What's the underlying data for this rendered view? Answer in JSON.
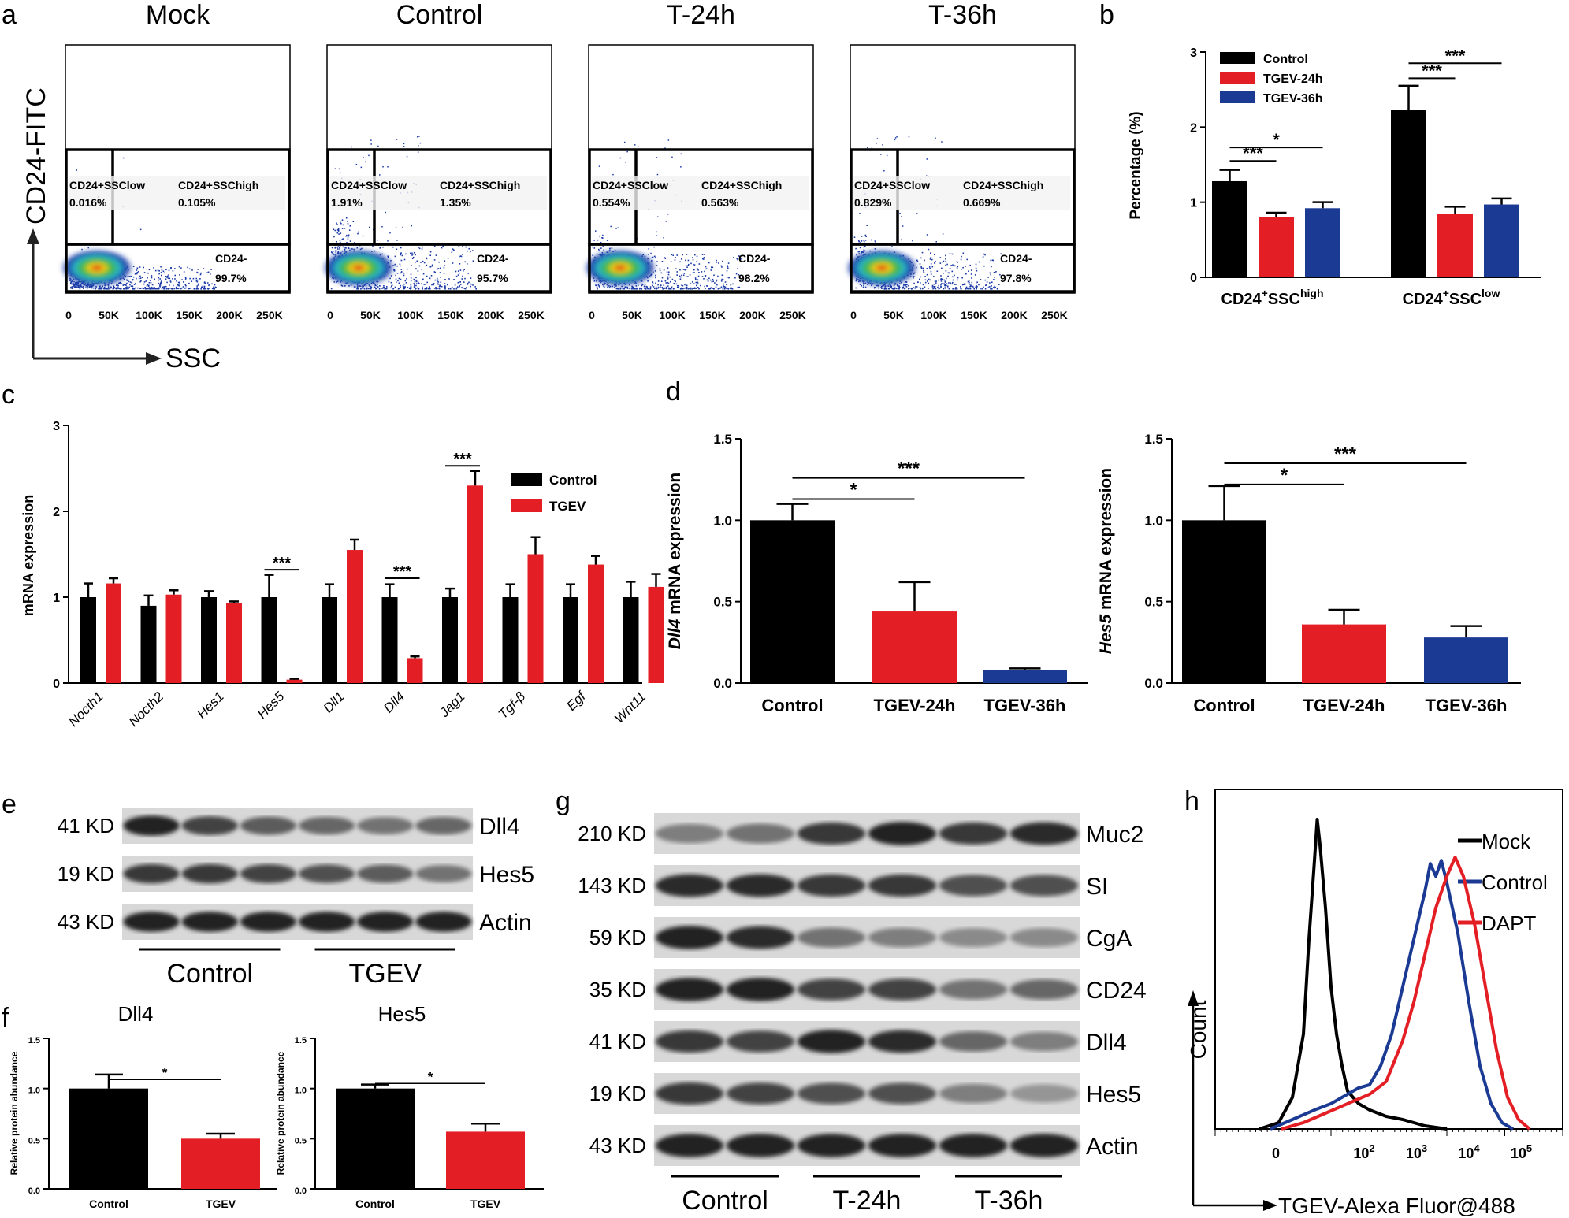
{
  "colors": {
    "black": "#000000",
    "red": "#e31e24",
    "blue": "#1b3a94"
  },
  "panel_a": {
    "letter": "a",
    "y_axis_label": "CD24-FITC",
    "x_axis_label": "SSC",
    "x_ticks": [
      "0",
      "50K",
      "100K",
      "150K",
      "200K",
      "250K"
    ],
    "plots": [
      {
        "title": "Mock",
        "gate_low_label": "CD24+SSClow",
        "gate_low_value": "0.016%",
        "gate_high_label": "CD24+SSChigh",
        "gate_high_value": "0.105%",
        "neg_label": "CD24-",
        "neg_value": "99.7%"
      },
      {
        "title": "Control",
        "gate_low_label": "CD24+SSClow",
        "gate_low_value": "1.91%",
        "gate_high_label": "CD24+SSChigh",
        "gate_high_value": "1.35%",
        "neg_label": "CD24-",
        "neg_value": "95.7%"
      },
      {
        "title": "T-24h",
        "gate_low_label": "CD24+SSClow",
        "gate_low_value": "0.554%",
        "gate_high_label": "CD24+SSChigh",
        "gate_high_value": "0.563%",
        "neg_label": "CD24-",
        "neg_value": "98.2%"
      },
      {
        "title": "T-36h",
        "gate_low_label": "CD24+SSClow",
        "gate_low_value": "0.829%",
        "gate_high_label": "CD24+SSChigh",
        "gate_high_value": "0.669%",
        "neg_label": "CD24-",
        "neg_value": "97.8%"
      }
    ]
  },
  "panel_e": {
    "letter": "e",
    "bands": [
      {
        "kd": "41 KD",
        "protein": "Dll4",
        "intensities": [
          0.95,
          0.8,
          0.7,
          0.65,
          0.6,
          0.65
        ]
      },
      {
        "kd": "19 KD",
        "protein": "Hes5",
        "intensities": [
          0.85,
          0.85,
          0.8,
          0.75,
          0.7,
          0.6
        ]
      },
      {
        "kd": "43 KD",
        "protein": "Actin",
        "intensities": [
          0.95,
          0.95,
          0.95,
          0.95,
          0.95,
          0.95
        ]
      }
    ],
    "groups": [
      "Control",
      "TGEV"
    ]
  },
  "panel_g": {
    "letter": "g",
    "bands": [
      {
        "kd": "210 KD",
        "protein": "Muc2",
        "intensities": [
          0.55,
          0.6,
          0.85,
          0.95,
          0.85,
          0.9
        ]
      },
      {
        "kd": "143 KD",
        "protein": "SI",
        "intensities": [
          0.9,
          0.9,
          0.85,
          0.85,
          0.75,
          0.75
        ]
      },
      {
        "kd": "59 KD",
        "protein": "CgA",
        "intensities": [
          0.95,
          0.9,
          0.6,
          0.55,
          0.5,
          0.5
        ]
      },
      {
        "kd": "35 KD",
        "protein": "CD24",
        "intensities": [
          0.95,
          0.95,
          0.8,
          0.8,
          0.6,
          0.65
        ]
      },
      {
        "kd": "41 KD",
        "protein": "Dll4",
        "intensities": [
          0.85,
          0.8,
          0.95,
          0.9,
          0.65,
          0.55
        ]
      },
      {
        "kd": "19 KD",
        "protein": "Hes5",
        "intensities": [
          0.85,
          0.8,
          0.75,
          0.75,
          0.55,
          0.45
        ]
      },
      {
        "kd": "43 KD",
        "protein": "Actin",
        "intensities": [
          0.95,
          0.95,
          0.95,
          0.95,
          0.95,
          0.95
        ]
      }
    ],
    "groups": [
      "Control",
      "T-24h",
      "T-36h"
    ]
  },
  "chart_data": [
    {
      "id": "b",
      "type": "bar",
      "letter": "b",
      "ylabel": "Percentage (%)",
      "ylim": [
        0,
        3
      ],
      "yticks": [
        "0",
        "1",
        "2",
        "3"
      ],
      "groups": [
        {
          "label_main": "CD24",
          "label_sup1": "+",
          "label_mid": "SSC",
          "label_sup2": "high"
        },
        {
          "label_main": "CD24",
          "label_sup1": "+",
          "label_mid": "SSC",
          "label_sup2": "low"
        }
      ],
      "series": [
        {
          "name": "Control",
          "values": [
            1.28,
            2.23
          ],
          "errors": [
            0.15,
            0.32
          ]
        },
        {
          "name": "TGEV-24h",
          "values": [
            0.8,
            0.84
          ],
          "errors": [
            0.06,
            0.1
          ]
        },
        {
          "name": "TGEV-36h",
          "values": [
            0.92,
            0.97
          ],
          "errors": [
            0.08,
            0.08
          ]
        }
      ],
      "legend_position": "top-left",
      "significance": [
        {
          "label": "***",
          "group": 0,
          "from": 0,
          "to": 1,
          "y": 1.55
        },
        {
          "label": "*",
          "group": 0,
          "from": 0,
          "to": 2,
          "y": 1.73
        },
        {
          "label": "***",
          "group": 1,
          "from": 0,
          "to": 1,
          "y": 2.65
        },
        {
          "label": "***",
          "group": 1,
          "from": 0,
          "to": 2,
          "y": 2.85
        }
      ]
    },
    {
      "id": "c",
      "type": "bar",
      "letter": "c",
      "ylabel": "mRNA expression",
      "ylim": [
        0,
        3
      ],
      "yticks": [
        "0",
        "1",
        "2",
        "3"
      ],
      "categories": [
        "Nocth1",
        "Nocth2",
        "Hes1",
        "Hes5",
        "Dll1",
        "Dll4",
        "Jag1",
        "Tgf-β",
        "Egf",
        "Wnt11"
      ],
      "series": [
        {
          "name": "Control",
          "values": [
            1.0,
            0.9,
            1.0,
            1.0,
            1.0,
            1.0,
            1.0,
            1.0,
            1.0,
            1.0
          ],
          "errors": [
            0.16,
            0.12,
            0.07,
            0.26,
            0.15,
            0.15,
            0.1,
            0.15,
            0.15,
            0.18
          ]
        },
        {
          "name": "TGEV",
          "values": [
            1.16,
            1.03,
            0.93,
            0.04,
            1.55,
            0.29,
            2.3,
            1.5,
            1.38,
            1.12
          ],
          "errors": [
            0.06,
            0.05,
            0.02,
            0.01,
            0.12,
            0.02,
            0.17,
            0.2,
            0.1,
            0.15
          ]
        }
      ],
      "legend_position": "top-right",
      "significance": [
        {
          "label": "***",
          "category": 3,
          "y": 1.32
        },
        {
          "label": "***",
          "category": 5,
          "y": 1.22
        },
        {
          "label": "***",
          "category": 6,
          "y": 2.53
        }
      ]
    },
    {
      "id": "d1",
      "type": "bar",
      "letter": "d",
      "ylabel_gene": "Dll4",
      "ylabel_rest": " mRNA expression",
      "ylim": [
        0,
        1.5
      ],
      "yticks": [
        "0.0",
        "0.5",
        "1.0",
        "1.5"
      ],
      "categories": [
        "Control",
        "TGEV-24h",
        "TGEV-36h"
      ],
      "values": [
        1.0,
        0.44,
        0.08
      ],
      "errors": [
        0.1,
        0.18,
        0.01
      ],
      "significance": [
        {
          "label": "*",
          "from": 0,
          "to": 1,
          "y": 1.13
        },
        {
          "label": "***",
          "from": 0,
          "to": 2,
          "y": 1.26
        }
      ]
    },
    {
      "id": "d2",
      "type": "bar",
      "ylabel_gene": "Hes5",
      "ylabel_rest": " mRNA expression",
      "ylim": [
        0,
        1.5
      ],
      "yticks": [
        "0.0",
        "0.5",
        "1.0",
        "1.5"
      ],
      "categories": [
        "Control",
        "TGEV-24h",
        "TGEV-36h"
      ],
      "values": [
        1.0,
        0.36,
        0.28
      ],
      "errors": [
        0.21,
        0.09,
        0.07
      ],
      "significance": [
        {
          "label": "*",
          "from": 0,
          "to": 1,
          "y": 1.22
        },
        {
          "label": "***",
          "from": 0,
          "to": 2,
          "y": 1.35
        }
      ]
    },
    {
      "id": "f1",
      "type": "bar",
      "letter": "f",
      "title": "Dll4",
      "ylabel": "Relative protein abundance",
      "ylim": [
        0,
        1.5
      ],
      "yticks": [
        "0.0",
        "0.5",
        "1.0",
        "1.5"
      ],
      "categories": [
        "Control",
        "TGEV"
      ],
      "values": [
        1.0,
        0.5
      ],
      "errors": [
        0.14,
        0.05
      ],
      "significance": [
        {
          "label": "*",
          "from": 0,
          "to": 1,
          "y": 1.09
        }
      ]
    },
    {
      "id": "f2",
      "type": "bar",
      "title": "Hes5",
      "ylabel": "Relative protein abundance",
      "ylim": [
        0,
        1.5
      ],
      "yticks": [
        "0.0",
        "0.5",
        "1.0",
        "1.5"
      ],
      "categories": [
        "Control",
        "TGEV"
      ],
      "values": [
        1.0,
        0.57
      ],
      "errors": [
        0.04,
        0.08
      ],
      "significance": [
        {
          "label": "*",
          "from": 0,
          "to": 1,
          "y": 1.05
        }
      ]
    },
    {
      "id": "h",
      "type": "line",
      "letter": "h",
      "ylabel": "Count",
      "xlabel": "TGEV-Alexa Fluor@488",
      "xticks": [
        {
          "base": "0",
          "exp": ""
        },
        {
          "base": "10",
          "exp": "2"
        },
        {
          "base": "10",
          "exp": "3"
        },
        {
          "base": "10",
          "exp": "4"
        },
        {
          "base": "10",
          "exp": "5"
        }
      ],
      "series": [
        {
          "name": "Mock",
          "color": "#000000",
          "points": [
            [
              0.0,
              0
            ],
            [
              0.35,
              2
            ],
            [
              0.6,
              10
            ],
            [
              0.8,
              30
            ],
            [
              0.9,
              60
            ],
            [
              1.0,
              85
            ],
            [
              1.05,
              98
            ],
            [
              1.1,
              90
            ],
            [
              1.2,
              70
            ],
            [
              1.3,
              45
            ],
            [
              1.4,
              30
            ],
            [
              1.5,
              20
            ],
            [
              1.6,
              12
            ],
            [
              1.8,
              8
            ],
            [
              2.0,
              6
            ],
            [
              2.3,
              4
            ],
            [
              2.6,
              3
            ],
            [
              3.0,
              1
            ],
            [
              3.4,
              0
            ]
          ]
        },
        {
          "name": "Control",
          "color": "#1b3a94",
          "points": [
            [
              0.2,
              0
            ],
            [
              0.6,
              3
            ],
            [
              1.0,
              6
            ],
            [
              1.3,
              8
            ],
            [
              1.6,
              11
            ],
            [
              1.8,
              13
            ],
            [
              2.0,
              14
            ],
            [
              2.2,
              20
            ],
            [
              2.4,
              30
            ],
            [
              2.6,
              45
            ],
            [
              2.8,
              60
            ],
            [
              3.0,
              75
            ],
            [
              3.1,
              84
            ],
            [
              3.2,
              80
            ],
            [
              3.3,
              85
            ],
            [
              3.4,
              78
            ],
            [
              3.6,
              62
            ],
            [
              3.8,
              40
            ],
            [
              4.0,
              20
            ],
            [
              4.2,
              8
            ],
            [
              4.4,
              2
            ],
            [
              4.6,
              0
            ]
          ]
        },
        {
          "name": "DAPT",
          "color": "#e31e24",
          "points": [
            [
              0.4,
              0
            ],
            [
              0.8,
              2
            ],
            [
              1.2,
              5
            ],
            [
              1.6,
              8
            ],
            [
              2.0,
              11
            ],
            [
              2.3,
              15
            ],
            [
              2.6,
              28
            ],
            [
              2.8,
              40
            ],
            [
              3.0,
              55
            ],
            [
              3.2,
              70
            ],
            [
              3.4,
              80
            ],
            [
              3.55,
              86
            ],
            [
              3.7,
              80
            ],
            [
              3.9,
              65
            ],
            [
              4.1,
              45
            ],
            [
              4.3,
              25
            ],
            [
              4.5,
              10
            ],
            [
              4.7,
              3
            ],
            [
              4.9,
              0
            ]
          ]
        }
      ],
      "xlim": [
        -0.8,
        5.5
      ],
      "ylim": [
        0,
        100
      ],
      "legend_position": "top-right"
    }
  ]
}
